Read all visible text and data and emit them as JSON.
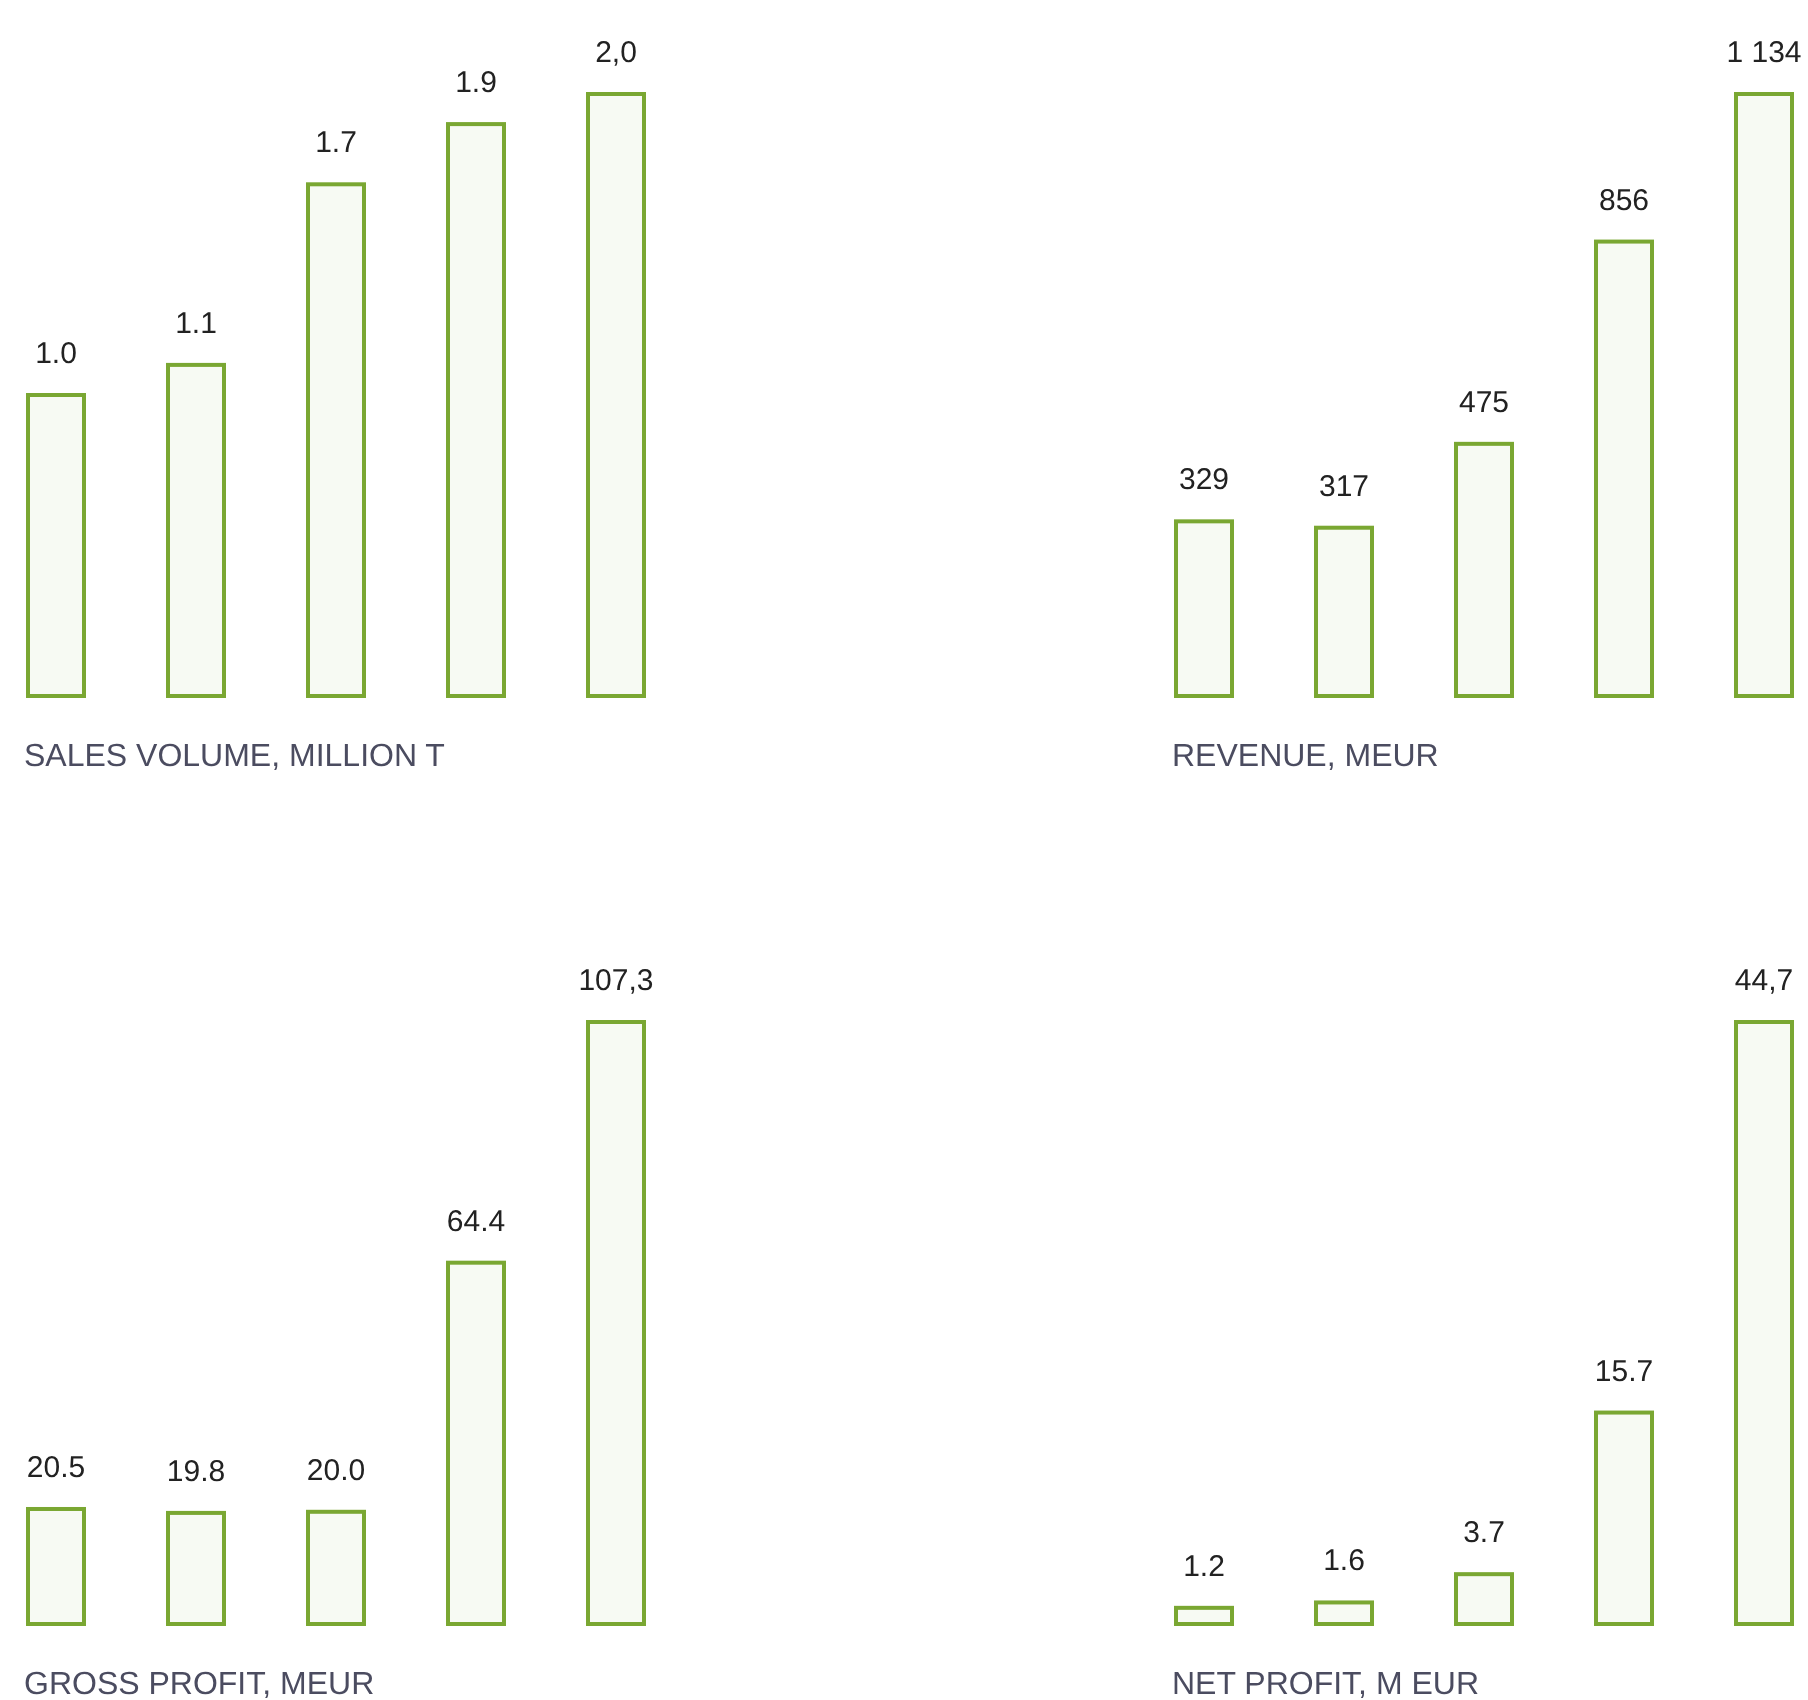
{
  "chart_data": [
    {
      "type": "bar",
      "title": "SALES VOLUME, MILLION T",
      "categories": [
        null,
        null,
        null,
        null,
        null
      ],
      "values": [
        1.0,
        1.1,
        1.7,
        1.9,
        2.0
      ],
      "value_labels": [
        "1.0",
        "1.1",
        "1.7",
        "1.9",
        "2,0"
      ],
      "color": "#7aa732",
      "relative": false
    },
    {
      "type": "bar",
      "title": "REVENUE, MEUR",
      "categories": [
        null,
        null,
        null,
        null,
        null
      ],
      "values": [
        329,
        317,
        475,
        856,
        1134
      ],
      "value_labels": [
        "329",
        "317",
        "475",
        "856",
        "1 134"
      ],
      "color": "#7aa732",
      "relative": false
    },
    {
      "type": "bar",
      "title": "GROSS PROFIT, MEUR",
      "categories": [
        null,
        null,
        null,
        null,
        null
      ],
      "values": [
        20.5,
        19.8,
        20.0,
        64.4,
        107.3
      ],
      "value_labels": [
        "20.5",
        "19.8",
        "20.0",
        "64.4",
        "107,3"
      ],
      "color": "#7aa732",
      "relative": false
    },
    {
      "type": "bar",
      "title": "NET PROFIT, M EUR",
      "categories": [
        null,
        null,
        null,
        null,
        null
      ],
      "values": [
        1.2,
        1.6,
        3.7,
        15.7,
        44.7
      ],
      "value_labels": [
        "1.2",
        "1.6",
        "3.7",
        "15.7",
        "44,7"
      ],
      "color": "#7aa732",
      "relative": false
    }
  ]
}
